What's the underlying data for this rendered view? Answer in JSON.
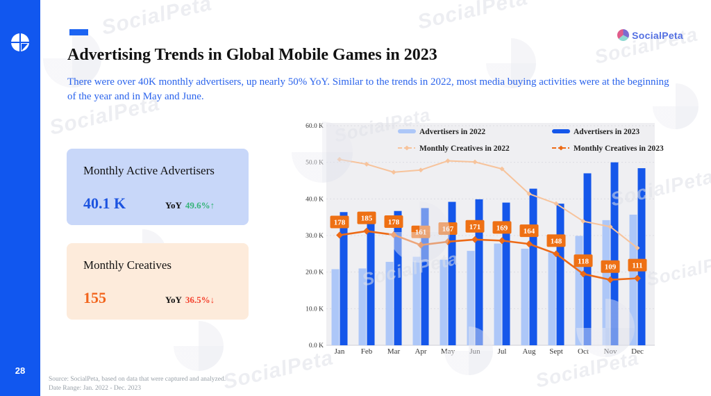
{
  "page": {
    "number": "28"
  },
  "brand": {
    "name": "SocialPeta"
  },
  "watermark": {
    "text": "SocialPeta"
  },
  "header": {
    "title": "Advertising Trends in Global Mobile Games in 2023",
    "subtitle": "There were over 40K monthly advertisers, up nearly 50% YoY. Similar to the trends in 2022, most media buying activities were at the beginning of the year and in May and June.",
    "accent_color": "#1157ef"
  },
  "cards": [
    {
      "title": "Monthly Active Advertisers",
      "value": "40.1 K",
      "yoy_label": "YoY",
      "yoy_value": "49.6%↑",
      "direction": "up",
      "value_color": "#1d54e0",
      "bg_color": "#c8d7f9"
    },
    {
      "title": "Monthly Creatives",
      "value": "155",
      "yoy_label": "YoY",
      "yoy_value": "36.5%↓",
      "direction": "down",
      "value_color": "#f2641c",
      "bg_color": "#fdebdb"
    }
  ],
  "footer": {
    "source": "Source: SocialPeta, based on data that were captured and analyzed.",
    "date_range": "Date Range: Jan. 2022 - Dec. 2023"
  },
  "chart_data": {
    "type": "bar+line combo",
    "legend_position": "top",
    "grid": true,
    "plot_bg": "#efeff2",
    "categories": [
      "Jan",
      "Feb",
      "Mar",
      "Apr",
      "May",
      "Jun",
      "Jul",
      "Aug",
      "Sept",
      "Oct",
      "Nov",
      "Dec"
    ],
    "y_ticks": [
      "0.0 K",
      "10.0 K",
      "20.0 K",
      "30.0 K",
      "40.0 K",
      "50.0 K",
      "60.0 K"
    ],
    "ylim_k": [
      0,
      60
    ],
    "series": [
      {
        "name": "Advertisers in 2022",
        "type": "bar",
        "color": "#adc7f8",
        "values_k": [
          20.8,
          21.0,
          22.8,
          24.2,
          23.4,
          25.8,
          27.8,
          26.4,
          25.4,
          29.9,
          34.2,
          35.7
        ]
      },
      {
        "name": "Advertisers in 2023",
        "type": "bar",
        "color": "#1557ea",
        "values_k": [
          36.4,
          36.5,
          36.7,
          37.5,
          39.2,
          39.9,
          39.0,
          42.8,
          38.7,
          47.0,
          50.0,
          48.4
        ]
      },
      {
        "name": "Monthly Creatives in 2022",
        "type": "line",
        "color": "#f7c39b",
        "values_k": [
          50.8,
          49.5,
          47.3,
          47.9,
          50.4,
          50.1,
          48.2,
          41.4,
          38.7,
          33.9,
          32.4,
          26.6
        ]
      },
      {
        "name": "Monthly Creatives in 2023",
        "type": "line",
        "color": "#ed6a16",
        "label_bg": "#ee7014",
        "values_k": [
          30.1,
          31.2,
          30.2,
          27.4,
          28.3,
          28.9,
          28.6,
          27.7,
          25.0,
          19.5,
          17.9,
          18.3
        ],
        "point_labels": [
          178,
          185,
          178,
          161,
          167,
          171,
          169,
          164,
          148,
          118,
          109,
          111
        ]
      }
    ],
    "note": "Creative-count lines are plotted at the listed left-axis K positions; 2023 line carries the actual monthly creative counts as data labels."
  }
}
